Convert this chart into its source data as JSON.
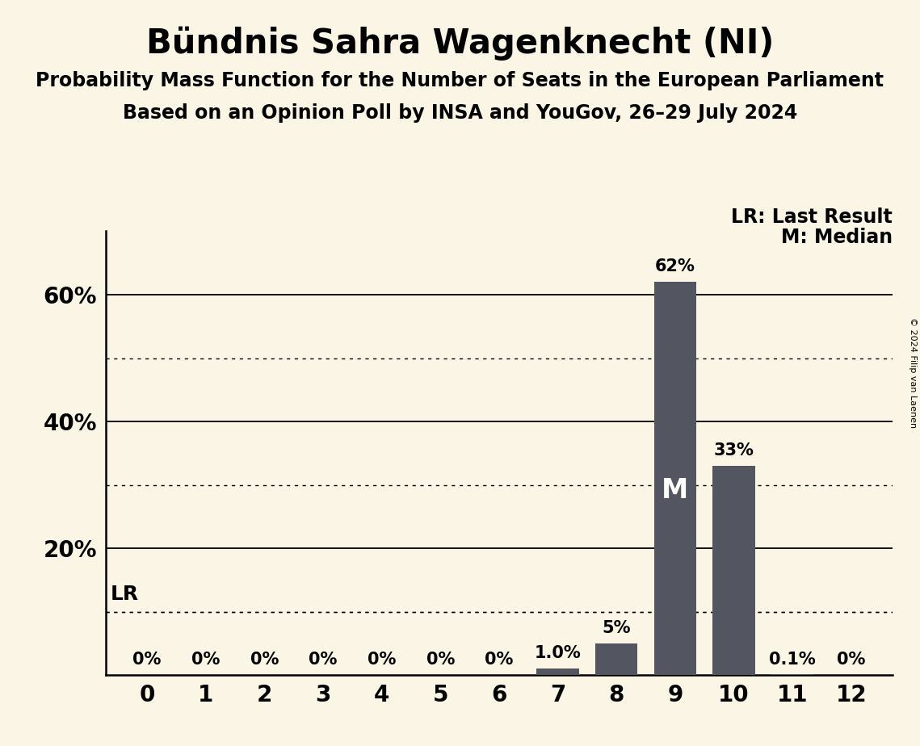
{
  "title": "Bündnis Sahra Wagenknecht (NI)",
  "subtitle1": "Probability Mass Function for the Number of Seats in the European Parliament",
  "subtitle2": "Based on an Opinion Poll by INSA and YouGov, 26–29 July 2024",
  "copyright": "© 2024 Filip van Laenen",
  "seats": [
    0,
    1,
    2,
    3,
    4,
    5,
    6,
    7,
    8,
    9,
    10,
    11,
    12
  ],
  "probabilities": [
    0.0,
    0.0,
    0.0,
    0.0,
    0.0,
    0.0,
    0.0,
    1.0,
    5.0,
    62.0,
    33.0,
    0.1,
    0.0
  ],
  "bar_color": "#535560",
  "background_color": "#faf5e4",
  "median_seat": 9,
  "lr_value": 10.0,
  "ylim": [
    0,
    70
  ],
  "solid_yticks": [
    20,
    40,
    60
  ],
  "dotted_yticks": [
    10,
    30,
    50
  ],
  "bar_labels": [
    "0%",
    "0%",
    "0%",
    "0%",
    "0%",
    "0%",
    "0%",
    "1.0%",
    "5%",
    "62%",
    "33%",
    "0.1%",
    "0%"
  ],
  "title_fontsize": 30,
  "subtitle_fontsize": 17,
  "label_fontsize": 15,
  "tick_fontsize": 20,
  "annotation_fontsize": 17
}
